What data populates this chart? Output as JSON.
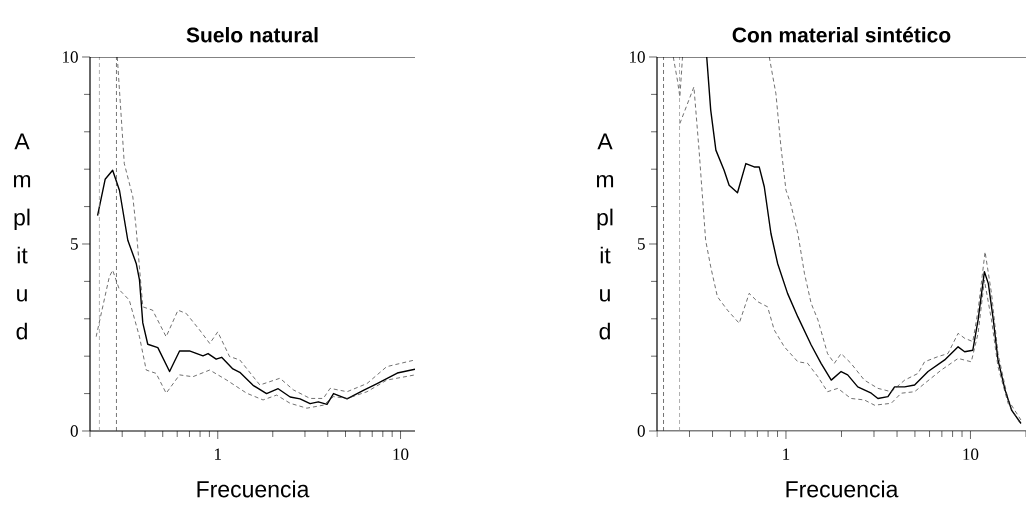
{
  "chart_data": [
    {
      "type": "line",
      "title": "Suelo natural",
      "xlabel": "Frecuencia",
      "ylabel": "A m pl it u d",
      "log": "x",
      "xlim": [
        0.2,
        12
      ],
      "ylim": [
        0,
        10
      ],
      "xticks": [
        {
          "value": 0.2,
          "label": null
        },
        {
          "value": 0.3,
          "label": null
        },
        {
          "value": 0.4,
          "label": null
        },
        {
          "value": 0.5,
          "label": null
        },
        {
          "value": 0.6,
          "label": null
        },
        {
          "value": 0.7,
          "label": null
        },
        {
          "value": 0.8,
          "label": null
        },
        {
          "value": 0.9,
          "label": null
        },
        1,
        {
          "value": 2,
          "label": null
        },
        {
          "value": 3,
          "label": null
        },
        {
          "value": 4,
          "label": null
        },
        {
          "value": 5,
          "label": null
        },
        {
          "value": 6,
          "label": null
        },
        {
          "value": 7,
          "label": null
        },
        {
          "value": 8,
          "label": null
        },
        {
          "value": 9,
          "label": null
        },
        10
      ],
      "yticks": [
        0,
        {
          "value": 1,
          "label": null
        },
        {
          "value": 2,
          "label": null
        },
        {
          "value": 3,
          "label": null
        },
        {
          "value": 4,
          "label": null
        },
        5,
        {
          "value": 6,
          "label": null
        },
        {
          "value": 7,
          "label": null
        },
        {
          "value": 8,
          "label": null
        },
        {
          "value": 9,
          "label": null
        },
        10
      ],
      "series": [
        {
          "color": "#000000",
          "line_style": "solid",
          "x": [
            0.22,
            0.242,
            0.266,
            0.29,
            0.322,
            0.358,
            0.373,
            0.389,
            0.414,
            0.47,
            0.545,
            0.618,
            0.7,
            0.83,
            0.885,
            0.98,
            1.05,
            1.21,
            1.32,
            1.56,
            1.85,
            2.14,
            2.49,
            2.82,
            3.2,
            3.55,
            3.96,
            4.3,
            5.1,
            6.3,
            7.4,
            9.6,
            12
          ],
          "values": [
            5.76,
            6.73,
            6.97,
            6.43,
            5.1,
            4.48,
            4.04,
            2.89,
            2.32,
            2.23,
            1.59,
            2.14,
            2.14,
            2.01,
            2.07,
            1.92,
            1.97,
            1.66,
            1.57,
            1.22,
            1.0,
            1.13,
            0.91,
            0.86,
            0.73,
            0.78,
            0.71,
            1.0,
            0.86,
            1.09,
            1.26,
            1.55,
            1.65
          ]
        },
        {
          "color": "#333333",
          "line_style": "dashed",
          "x": [
            0.282,
            0.308,
            0.343,
            0.357,
            0.389,
            0.44,
            0.522,
            0.606,
            0.673,
            0.796,
            0.904,
            1.0,
            1.16,
            1.32,
            1.7,
            2.19,
            2.59,
            3.2,
            3.78,
            4.12,
            5.1,
            6.56,
            8.4,
            12
          ],
          "values": [
            10,
            7.15,
            6.26,
            5.46,
            3.32,
            3.23,
            2.52,
            3.23,
            3.14,
            2.7,
            2.34,
            2.65,
            1.99,
            1.9,
            1.23,
            1.41,
            1.1,
            0.87,
            0.87,
            1.14,
            1.05,
            1.27,
            1.72,
            1.9
          ]
        },
        {
          "color": "#333333",
          "line_style": "dashed",
          "x": [
            0.216,
            0.255,
            0.266,
            0.29,
            0.328,
            0.373,
            0.406,
            0.46,
            0.522,
            0.618,
            0.73,
            0.904,
            1.12,
            1.44,
            1.77,
            2.1,
            2.49,
            3.07,
            3.78,
            4.3,
            5.1,
            6.56,
            8.4,
            12
          ],
          "values": [
            2.52,
            4.12,
            4.3,
            3.77,
            3.5,
            2.52,
            1.63,
            1.54,
            1.01,
            1.5,
            1.45,
            1.63,
            1.36,
            1.01,
            0.83,
            0.96,
            0.74,
            0.61,
            0.69,
            0.92,
            0.87,
            1.05,
            1.36,
            1.5
          ]
        }
      ],
      "ref_lines": [
        {
          "axis": "x",
          "value": 0.225,
          "color": "#888888",
          "line_style": "dashed"
        },
        {
          "axis": "x",
          "value": 0.279,
          "color": "#333333",
          "line_style": "dashed"
        }
      ]
    },
    {
      "type": "line",
      "title": "Con material sintético",
      "xlabel": "Frecuencia",
      "ylabel": "A m pl it u d",
      "log": "x",
      "xlim": [
        0.2,
        20
      ],
      "ylim": [
        0,
        10
      ],
      "xticks": [
        {
          "value": 0.2,
          "label": null
        },
        {
          "value": 0.3,
          "label": null
        },
        {
          "value": 0.4,
          "label": null
        },
        {
          "value": 0.5,
          "label": null
        },
        {
          "value": 0.6,
          "label": null
        },
        {
          "value": 0.7,
          "label": null
        },
        {
          "value": 0.8,
          "label": null
        },
        {
          "value": 0.9,
          "label": null
        },
        1,
        {
          "value": 2,
          "label": null
        },
        {
          "value": 3,
          "label": null
        },
        {
          "value": 4,
          "label": null
        },
        {
          "value": 5,
          "label": null
        },
        {
          "value": 6,
          "label": null
        },
        {
          "value": 7,
          "label": null
        },
        {
          "value": 8,
          "label": null
        },
        {
          "value": 9,
          "label": null
        },
        10,
        {
          "value": 20,
          "label": null
        }
      ],
      "yticks": [
        0,
        {
          "value": 1,
          "label": null
        },
        {
          "value": 2,
          "label": null
        },
        {
          "value": 3,
          "label": null
        },
        {
          "value": 4,
          "label": null
        },
        5,
        {
          "value": 6,
          "label": null
        },
        {
          "value": 7,
          "label": null
        },
        {
          "value": 8,
          "label": null
        },
        {
          "value": 9,
          "label": null
        },
        10
      ],
      "series": [
        {
          "color": "#000000",
          "line_style": "solid",
          "x": [
            0.372,
            0.391,
            0.417,
            0.462,
            0.492,
            0.546,
            0.606,
            0.673,
            0.716,
            0.763,
            0.829,
            0.901,
            1.02,
            1.16,
            1.37,
            1.55,
            1.76,
            1.99,
            2.16,
            2.45,
            2.9,
            3.15,
            3.57,
            3.88,
            4.4,
            4.98,
            5.89,
            7.25,
            8.57,
            9.3,
            10.3,
            11.0,
            11.9,
            12.5,
            13.3,
            14.1,
            15.4,
            16.7,
            18.8
          ],
          "values": [
            10,
            8.58,
            7.51,
            6.97,
            6.57,
            6.37,
            7.15,
            7.06,
            7.06,
            6.53,
            5.28,
            4.48,
            3.68,
            3.05,
            2.3,
            1.81,
            1.36,
            1.59,
            1.5,
            1.18,
            1.01,
            0.87,
            0.92,
            1.18,
            1.18,
            1.23,
            1.59,
            1.9,
            2.25,
            2.12,
            2.16,
            2.97,
            4.26,
            3.94,
            2.97,
            1.9,
            1.1,
            0.56,
            0.2
          ]
        },
        {
          "color": "#333333",
          "line_style": "dashed",
          "x": [
            0.245,
            0.258,
            0.266,
            0.275,
            0.5,
            0.812,
            0.882,
            0.939,
            1.0,
            1.06,
            1.16,
            1.26,
            1.37,
            1.49,
            1.68,
            1.83,
            1.99,
            2.25,
            2.66,
            3.15,
            3.72,
            4.4,
            5.2,
            5.64,
            6.68,
            7.55,
            8.57,
            9.3,
            10.3,
            11.0,
            12.0,
            13.0,
            14.1,
            16.0,
            18.8
          ],
          "values": [
            10,
            9.38,
            8.93,
            10,
            null,
            10,
            9.02,
            7.6,
            6.44,
            6.08,
            5.28,
            4.21,
            3.41,
            2.97,
            2.07,
            1.81,
            2.07,
            1.81,
            1.36,
            1.14,
            1.05,
            1.36,
            1.54,
            1.85,
            1.99,
            2.07,
            2.61,
            2.48,
            2.39,
            3.23,
            4.79,
            3.68,
            2.07,
            0.83,
            0.29
          ]
        },
        {
          "color": "#333333",
          "line_style": "dashed",
          "x": [
            0.266,
            0.317,
            0.338,
            0.367,
            0.391,
            0.425,
            0.482,
            0.558,
            0.632,
            0.701,
            0.795,
            0.864,
            0.98,
            1.16,
            1.31,
            1.49,
            1.68,
            1.91,
            2.25,
            2.66,
            3.02,
            3.72,
            4.21,
            4.98,
            5.64,
            6.95,
            8.57,
            10.1,
            11.0,
            11.9,
            13.0,
            14.1,
            16.0,
            18.8
          ],
          "values": [
            8.22,
            9.2,
            7.51,
            5.1,
            4.39,
            3.59,
            3.23,
            2.88,
            3.68,
            3.46,
            3.32,
            2.7,
            2.25,
            1.85,
            1.81,
            1.45,
            1.05,
            1.14,
            0.87,
            0.83,
            0.69,
            0.74,
            1.01,
            1.05,
            1.27,
            1.63,
            1.94,
            1.85,
            2.61,
            4.03,
            2.97,
            1.72,
            0.74,
            0.16
          ]
        }
      ],
      "ref_lines": [
        {
          "axis": "x",
          "value": 0.217,
          "color": "#333333",
          "line_style": "dashed"
        },
        {
          "axis": "x",
          "value": 0.265,
          "color": "#888888",
          "line_style": "dashed"
        }
      ]
    }
  ]
}
